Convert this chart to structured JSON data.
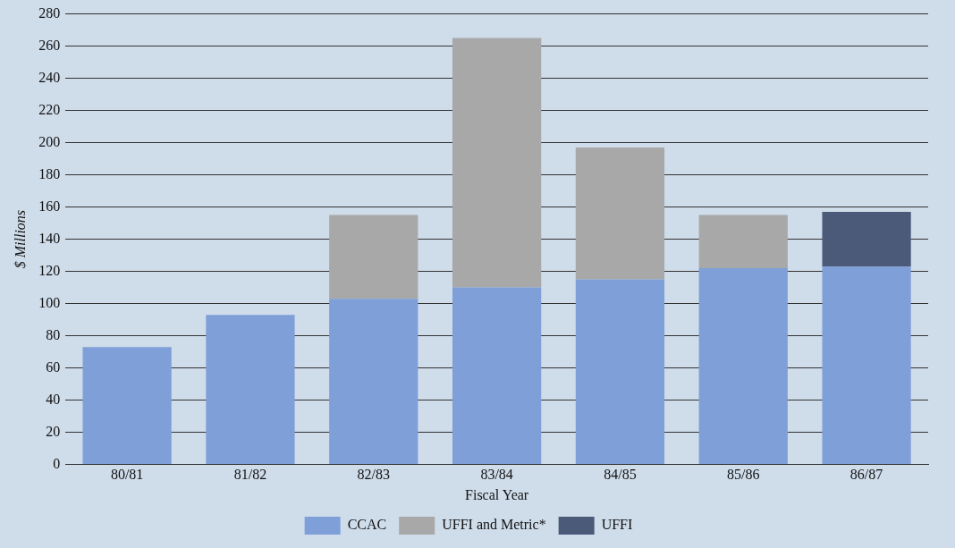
{
  "chart_data": {
    "type": "bar",
    "stacked": true,
    "xlabel": "Fiscal Year",
    "ylabel": "$ Millions",
    "categories": [
      "80/81",
      "81/82",
      "82/83",
      "83/84",
      "84/85",
      "85/86",
      "86/87"
    ],
    "series": [
      {
        "name": "CCAC",
        "color": "#7f9fd9",
        "values": [
          73,
          93,
          103,
          110,
          115,
          122,
          123
        ]
      },
      {
        "name": "UFFI and Metric*",
        "color": "#a8a8a8",
        "values": [
          null,
          null,
          52,
          155,
          82,
          33,
          null
        ]
      },
      {
        "name": "UFFI",
        "color": "#4b5a78",
        "values": [
          null,
          null,
          null,
          null,
          null,
          null,
          34
        ]
      }
    ],
    "ylim": [
      0,
      280
    ],
    "yticks": [
      0,
      20,
      40,
      60,
      80,
      100,
      120,
      140,
      160,
      180,
      200,
      220,
      240,
      260,
      280
    ],
    "grid": "y",
    "legend": "bottom"
  }
}
